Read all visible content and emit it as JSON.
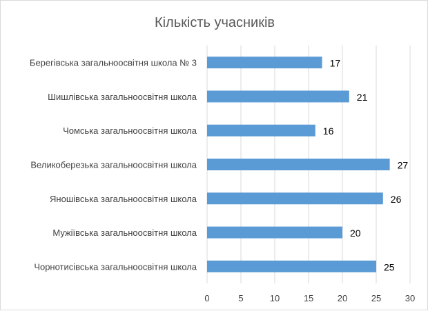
{
  "chart_data": {
    "type": "bar",
    "orientation": "horizontal",
    "title": "Кількість учасників",
    "categories": [
      "Берегівська загальноосвітня школа № 3",
      "Шишлівська загальноосвітня школа",
      "Чомська загальноосвітня школа",
      "Великоберезька загальноосвітня школа",
      "Яношівська загальноосвітня школа",
      "Мужіївська загальноосвітня школа",
      "Чорнотисівська загальноосвітня школа"
    ],
    "values": [
      17,
      21,
      16,
      27,
      26,
      20,
      25
    ],
    "xlim": [
      0,
      30
    ],
    "xticks": [
      0,
      5,
      10,
      15,
      20,
      25,
      30
    ],
    "xlabel": "",
    "ylabel": "",
    "grid": true,
    "data_labels": true,
    "legend": "none",
    "colors": {
      "bar": "#5b9bd5",
      "grid": "#d9d9d9",
      "text": "#404040",
      "title": "#595959"
    }
  }
}
